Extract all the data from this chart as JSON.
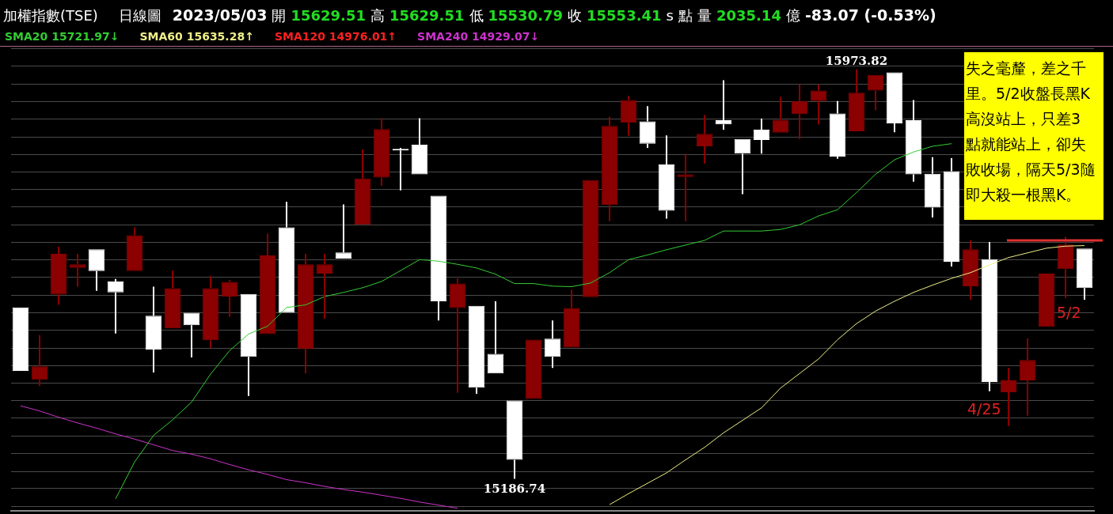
{
  "chart_data": {
    "type": "candlestick",
    "title": "加權指數(TSE)",
    "subtitle": "日線圖",
    "categories": [
      null,
      null,
      null,
      null,
      null,
      null,
      null,
      null,
      null,
      null,
      null,
      null,
      null,
      null,
      null,
      null,
      null,
      null,
      null,
      null,
      null,
      null,
      null,
      null,
      null,
      null,
      null,
      null,
      null,
      null,
      null,
      null,
      null,
      null,
      null,
      null,
      null,
      null,
      null,
      null,
      null,
      null,
      null,
      null,
      null,
      null,
      null,
      null,
      null,
      null,
      null,
      null,
      null,
      null,
      null,
      null,
      null
    ],
    "ohlc": [
      [
        15516,
        15516,
        15394,
        15394
      ],
      [
        15377,
        15463,
        15365,
        15403
      ],
      [
        15541,
        15633,
        15521,
        15619
      ],
      [
        15592,
        15619,
        15556,
        15599
      ],
      [
        15628,
        15628,
        15548,
        15586
      ],
      [
        15566,
        15571,
        15466,
        15545
      ],
      [
        15586,
        15670,
        15586,
        15655
      ],
      [
        15500,
        15556,
        15391,
        15435
      ],
      [
        15476,
        15587,
        15476,
        15553
      ],
      [
        15506,
        15506,
        15420,
        15482
      ],
      [
        15453,
        15577,
        15438,
        15553
      ],
      [
        15537,
        15569,
        15498,
        15565
      ],
      [
        15542,
        15542,
        15346,
        15421
      ],
      [
        15465,
        15658,
        15465,
        15616
      ],
      [
        15670,
        15719,
        15506,
        15506
      ],
      [
        15436,
        15619,
        15389,
        15599
      ],
      [
        15581,
        15619,
        15494,
        15599
      ],
      [
        15622,
        15714,
        15610,
        15610
      ],
      [
        15675,
        15820,
        15675,
        15764
      ],
      [
        15766,
        15880,
        15750,
        15859
      ],
      [
        15820,
        15823,
        15741,
        15818
      ],
      [
        15829,
        15880,
        15772,
        15772
      ],
      [
        15731,
        15731,
        15491,
        15528
      ],
      [
        15515,
        15572,
        15352,
        15562
      ],
      [
        15519,
        15519,
        15350,
        15362
      ],
      [
        15427,
        15528,
        15389,
        15389
      ],
      [
        15337,
        15337,
        15186.74,
        15223
      ],
      [
        15340,
        15454,
        15340,
        15454
      ],
      [
        15456,
        15491,
        15400,
        15421
      ],
      [
        15439,
        15550,
        15439,
        15515
      ],
      [
        15536,
        15761,
        15536,
        15761
      ],
      [
        15713,
        15883,
        15682,
        15865
      ],
      [
        15871,
        15923,
        15846,
        15915
      ],
      [
        15874,
        15903,
        15823,
        15831
      ],
      [
        15791,
        15847,
        15687,
        15702
      ],
      [
        15767,
        15812,
        15682,
        15772
      ],
      [
        15826,
        15886,
        15793,
        15850
      ],
      [
        15876,
        15953,
        15858,
        15868
      ],
      [
        15840,
        15840,
        15734,
        15812
      ],
      [
        15858,
        15879,
        15812,
        15838
      ],
      [
        15852,
        15921,
        15852,
        15877
      ],
      [
        15888,
        15945,
        15840,
        15913
      ],
      [
        15913,
        15945,
        15868,
        15933
      ],
      [
        15889,
        15913,
        15802,
        15806
      ],
      [
        15855,
        15973.82,
        15855,
        15929
      ],
      [
        15933,
        15963,
        15895,
        15963
      ],
      [
        15968,
        15968,
        15853,
        15870
      ],
      [
        15876,
        15915,
        15758,
        15772
      ],
      [
        15773,
        15805,
        15689,
        15708
      ],
      [
        15778,
        15803,
        15595,
        15604
      ],
      [
        15557,
        15645,
        15531,
        15628
      ],
      [
        15609,
        15642,
        15355,
        15373
      ],
      [
        15353,
        15400,
        15288,
        15376
      ],
      [
        15376,
        15457,
        15308,
        15415
      ],
      [
        15479,
        15581,
        15479,
        15581
      ],
      [
        15590,
        15652,
        15534,
        15637
      ],
      [
        15629.51,
        15629.51,
        15530.79,
        15553.41
      ]
    ],
    "colors": [
      "#ffffff",
      "#8b0000",
      "#8b0000",
      "#8b0000",
      "#ffffff",
      "#ffffff",
      "#8b0000",
      "#ffffff",
      "#8b0000",
      "#ffffff",
      "#8b0000",
      "#8b0000",
      "#ffffff",
      "#8b0000",
      "#ffffff",
      "#8b0000",
      "#8b0000",
      "#ffffff",
      "#8b0000",
      "#8b0000",
      "#ffffff",
      "#ffffff",
      "#ffffff",
      "#8b0000",
      "#ffffff",
      "#ffffff",
      "#ffffff",
      "#8b0000",
      "#ffffff",
      "#8b0000",
      "#8b0000",
      "#8b0000",
      "#8b0000",
      "#ffffff",
      "#ffffff",
      "#8b0000",
      "#8b0000",
      "#ffffff",
      "#ffffff",
      "#ffffff",
      "#8b0000",
      "#8b0000",
      "#8b0000",
      "#ffffff",
      "#8b0000",
      "#8b0000",
      "#ffffff",
      "#ffffff",
      "#ffffff",
      "#ffffff",
      "#8b0000",
      "#ffffff",
      "#8b0000",
      "#8b0000",
      "#8b0000",
      "#8b0000",
      "#ffffff"
    ],
    "series": [
      {
        "type": "line",
        "name": "SMA20 15721.97↓",
        "color": "#33cc33",
        "values": [
          null,
          null,
          null,
          null,
          null,
          15148,
          15219,
          15270,
          15300,
          15334,
          15388,
          15433,
          15465,
          15480,
          15516,
          15521,
          15537,
          15545,
          15554,
          15566,
          15587,
          15608,
          15605,
          15599,
          15592,
          15580,
          15562,
          15562,
          15557,
          15556,
          15563,
          15583,
          15608,
          15617,
          15627,
          15636,
          15645,
          15663,
          15663,
          15663,
          15666,
          15675,
          15692,
          15704,
          15737,
          15772,
          15800,
          15815,
          15826,
          15831,
          null,
          null,
          null,
          null,
          null,
          null,
          null
        ]
      },
      {
        "type": "line",
        "name": "SMA60 15635.28↑",
        "color": "#eeee88",
        "values": [
          null,
          null,
          null,
          null,
          null,
          null,
          null,
          null,
          null,
          null,
          null,
          null,
          null,
          null,
          null,
          null,
          null,
          null,
          null,
          null,
          null,
          null,
          null,
          null,
          null,
          null,
          null,
          null,
          null,
          null,
          null,
          15137,
          15158,
          15178,
          15198,
          15223,
          15247,
          15275,
          15299,
          15323,
          15361,
          15389,
          15417,
          15454,
          15485,
          15509,
          15528,
          15545,
          15559,
          15572,
          15583,
          15598,
          15612,
          15621,
          15630,
          15634,
          15635
        ]
      },
      {
        "type": "line",
        "name": "SMA120 14976.01↑",
        "color": "#ff2020",
        "values": [
          null,
          null,
          null,
          null,
          null,
          null,
          null,
          null,
          null,
          null,
          null,
          null,
          null,
          null,
          null,
          null,
          null,
          null,
          null,
          null,
          null,
          null,
          null,
          null,
          null,
          null,
          null,
          null,
          null,
          null,
          null,
          null,
          null,
          null,
          null,
          null,
          null,
          null,
          null,
          null,
          null,
          null,
          null,
          null,
          null,
          null,
          null,
          null,
          null,
          null,
          null,
          null,
          null,
          null,
          null,
          null,
          null
        ]
      },
      {
        "type": "line",
        "name": "SMA240 14929.07↓",
        "color": "#cc33cc",
        "values": [
          15327,
          15317,
          15305,
          15294,
          15284,
          15273,
          15263,
          15252,
          15241,
          15234,
          15225,
          15214,
          15204,
          15195,
          15185,
          15179,
          15172,
          15166,
          15161,
          15155,
          15149,
          15142,
          15136,
          15130,
          null,
          null,
          null,
          null,
          null,
          null,
          null,
          null,
          null,
          null,
          null,
          null,
          null,
          null,
          null,
          null,
          null,
          null,
          null,
          null,
          null,
          null,
          null,
          null,
          null,
          null,
          null,
          null,
          null,
          null,
          null,
          null,
          null
        ]
      }
    ],
    "ylim": [
      15125,
      16016
    ],
    "yticks": [
      {
        "value": 16014,
        "label": null
      },
      {
        "value": 15980,
        "label": null
      },
      {
        "value": 15946,
        "label": null
      },
      {
        "value": 15912,
        "label": null
      },
      {
        "value": 15878,
        "label": null
      },
      {
        "value": 15844,
        "label": null
      },
      {
        "value": 15810,
        "label": null
      },
      {
        "value": 15777,
        "label": null
      },
      {
        "value": 15743,
        "label": null
      },
      {
        "value": 15709,
        "label": null
      },
      {
        "value": 15675,
        "label": null
      },
      {
        "value": 15641,
        "label": null
      },
      {
        "value": 15607,
        "label": null
      },
      {
        "value": 15574,
        "label": null
      },
      {
        "value": 15540,
        "label": null
      },
      {
        "value": 15506,
        "label": null
      },
      {
        "value": 15472,
        "label": null
      },
      {
        "value": 15438,
        "label": null
      },
      {
        "value": 15404,
        "label": null
      },
      {
        "value": 15371,
        "label": null
      },
      {
        "value": 15337,
        "label": null
      },
      {
        "value": 15303,
        "label": null
      },
      {
        "value": 15269,
        "label": null
      },
      {
        "value": 15235,
        "label": null
      },
      {
        "value": 15201,
        "label": null
      },
      {
        "value": 15168,
        "label": null
      },
      {
        "value": 15134,
        "label": null
      }
    ],
    "ref_lines": [
      {
        "axis": "y",
        "value": 15645,
        "label": null,
        "color": "#e03030"
      }
    ],
    "annotations": [
      "2023/05/03",
      "開",
      "15629.51",
      "高",
      "15629.51",
      "低",
      "15530.79",
      "收",
      "15553.41",
      "s",
      "點",
      "量",
      "2035.14",
      "億",
      "-83.07 (-0.53%)",
      "失之毫釐，差之千里。5/2收盤長黑K高沒站上，只差3點就能站上，卻失敗收場，隔天5/3隨即大殺一根黑K。",
      "4/25",
      "5/2",
      {
        "text": "15973.82",
        "y": 15973.82
      },
      {
        "text": "15186.74",
        "y": 15186.74
      }
    ],
    "grid": "y",
    "legend": "top left",
    "marker": "none",
    "line_style": "solid"
  }
}
